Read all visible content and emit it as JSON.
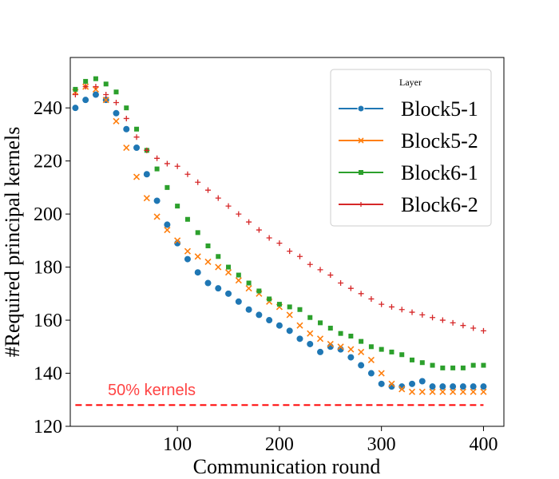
{
  "chart_data": {
    "type": "line",
    "title": "",
    "xlabel": "Communication round",
    "ylabel": "#Required principal kernels",
    "xlim": [
      -5,
      420
    ],
    "ylim": [
      120,
      259
    ],
    "xticks": [
      100,
      200,
      300,
      400
    ],
    "yticks": [
      120,
      140,
      160,
      180,
      200,
      220,
      240
    ],
    "grid": false,
    "legend": {
      "title": "Layer",
      "placement": "top-right"
    },
    "annotation": {
      "text": "50% kernels",
      "color": "#ff4444"
    },
    "reference_line": {
      "y": 128,
      "x_range": [
        0,
        400
      ],
      "color": "#ff0000",
      "style": "dashed"
    },
    "series": [
      {
        "name": "Block5-1",
        "color": "#1f77b4",
        "marker": "circle",
        "x": [
          0,
          10,
          20,
          30,
          40,
          50,
          60,
          70,
          80,
          90,
          100,
          110,
          120,
          130,
          140,
          150,
          160,
          170,
          180,
          190,
          200,
          210,
          220,
          230,
          240,
          250,
          260,
          270,
          280,
          290,
          300,
          310,
          320,
          330,
          340,
          350,
          360,
          370,
          380,
          390,
          400
        ],
        "y": [
          240,
          243,
          245,
          243,
          238,
          232,
          225,
          215,
          205,
          196,
          189,
          183,
          178,
          174,
          172,
          170,
          167,
          164,
          162,
          160,
          158,
          156,
          153,
          151,
          148,
          150,
          149,
          146,
          143,
          140,
          136,
          135,
          135,
          136,
          137,
          135,
          135,
          135,
          135,
          135,
          135
        ]
      },
      {
        "name": "Block5-2",
        "color": "#ff7f0e",
        "marker": "x",
        "x": [
          0,
          10,
          20,
          30,
          40,
          50,
          60,
          70,
          80,
          90,
          100,
          110,
          120,
          130,
          140,
          150,
          160,
          170,
          180,
          190,
          200,
          210,
          220,
          230,
          240,
          250,
          260,
          270,
          280,
          290,
          300,
          310,
          320,
          330,
          340,
          350,
          360,
          370,
          380,
          390,
          400
        ],
        "y": [
          246,
          248,
          247,
          243,
          235,
          225,
          214,
          206,
          199,
          194,
          190,
          186,
          184,
          182,
          180,
          178,
          175,
          172,
          170,
          167,
          165,
          162,
          158,
          155,
          153,
          151,
          150,
          149,
          148,
          145,
          140,
          136,
          134,
          133,
          133,
          133,
          133,
          133,
          133,
          133,
          133
        ]
      },
      {
        "name": "Block6-1",
        "color": "#2ca02c",
        "marker": "square",
        "x": [
          0,
          10,
          20,
          30,
          40,
          50,
          60,
          70,
          80,
          90,
          100,
          110,
          120,
          130,
          140,
          150,
          160,
          170,
          180,
          190,
          200,
          210,
          220,
          230,
          240,
          250,
          260,
          270,
          280,
          290,
          300,
          310,
          320,
          330,
          340,
          350,
          360,
          370,
          380,
          390,
          400
        ],
        "y": [
          247,
          250,
          251,
          249,
          246,
          240,
          232,
          224,
          217,
          210,
          203,
          198,
          193,
          188,
          184,
          180,
          177,
          174,
          171,
          168,
          166,
          165,
          164,
          161,
          159,
          157,
          155,
          154,
          152,
          150,
          149,
          148,
          147,
          145,
          144,
          143,
          142,
          142,
          142,
          143,
          143
        ]
      },
      {
        "name": "Block6-2",
        "color": "#d62728",
        "marker": "plus",
        "x": [
          0,
          10,
          20,
          30,
          40,
          50,
          60,
          70,
          80,
          90,
          100,
          110,
          120,
          130,
          140,
          150,
          160,
          170,
          180,
          190,
          200,
          210,
          220,
          230,
          240,
          250,
          260,
          270,
          280,
          290,
          300,
          310,
          320,
          330,
          340,
          350,
          360,
          370,
          380,
          390,
          400
        ],
        "y": [
          245,
          248,
          248,
          245,
          242,
          236,
          229,
          224,
          221,
          219,
          218,
          215,
          212,
          209,
          206,
          203,
          200,
          197,
          194,
          191,
          189,
          186,
          184,
          181,
          179,
          177,
          174,
          172,
          170,
          168,
          166,
          165,
          164,
          163,
          162,
          161,
          160,
          159,
          158,
          157,
          156
        ]
      }
    ]
  }
}
